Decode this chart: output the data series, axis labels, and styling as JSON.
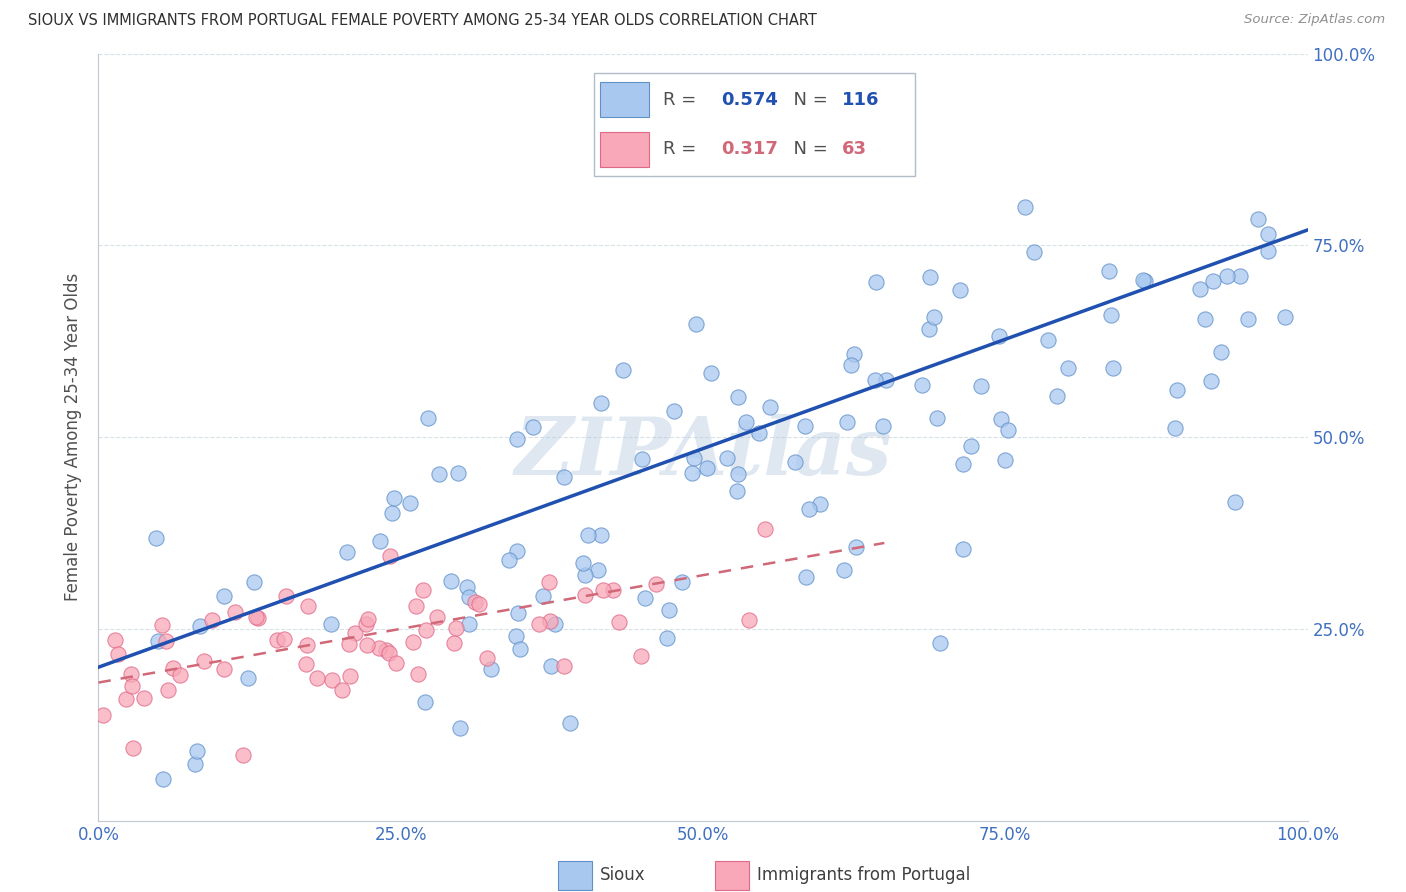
{
  "title": "SIOUX VS IMMIGRANTS FROM PORTUGAL FEMALE POVERTY AMONG 25-34 YEAR OLDS CORRELATION CHART",
  "source": "Source: ZipAtlas.com",
  "ylabel": "Female Poverty Among 25-34 Year Olds",
  "sioux_color": "#a8c8f0",
  "sioux_edge_color": "#6090c8",
  "portugal_color": "#f8a8b8",
  "portugal_edge_color": "#e06888",
  "sioux_line_color": "#2050b0",
  "portugal_line_color": "#d06878",
  "R_sioux": 0.574,
  "N_sioux": 116,
  "R_portugal": 0.317,
  "N_portugal": 63,
  "watermark": "ZIPAtlas",
  "background_color": "#ffffff",
  "tick_color": "#4070c0",
  "grid_color": "#d8e0e8",
  "title_color": "#303030",
  "ylabel_color": "#505050",
  "source_color": "#909090"
}
